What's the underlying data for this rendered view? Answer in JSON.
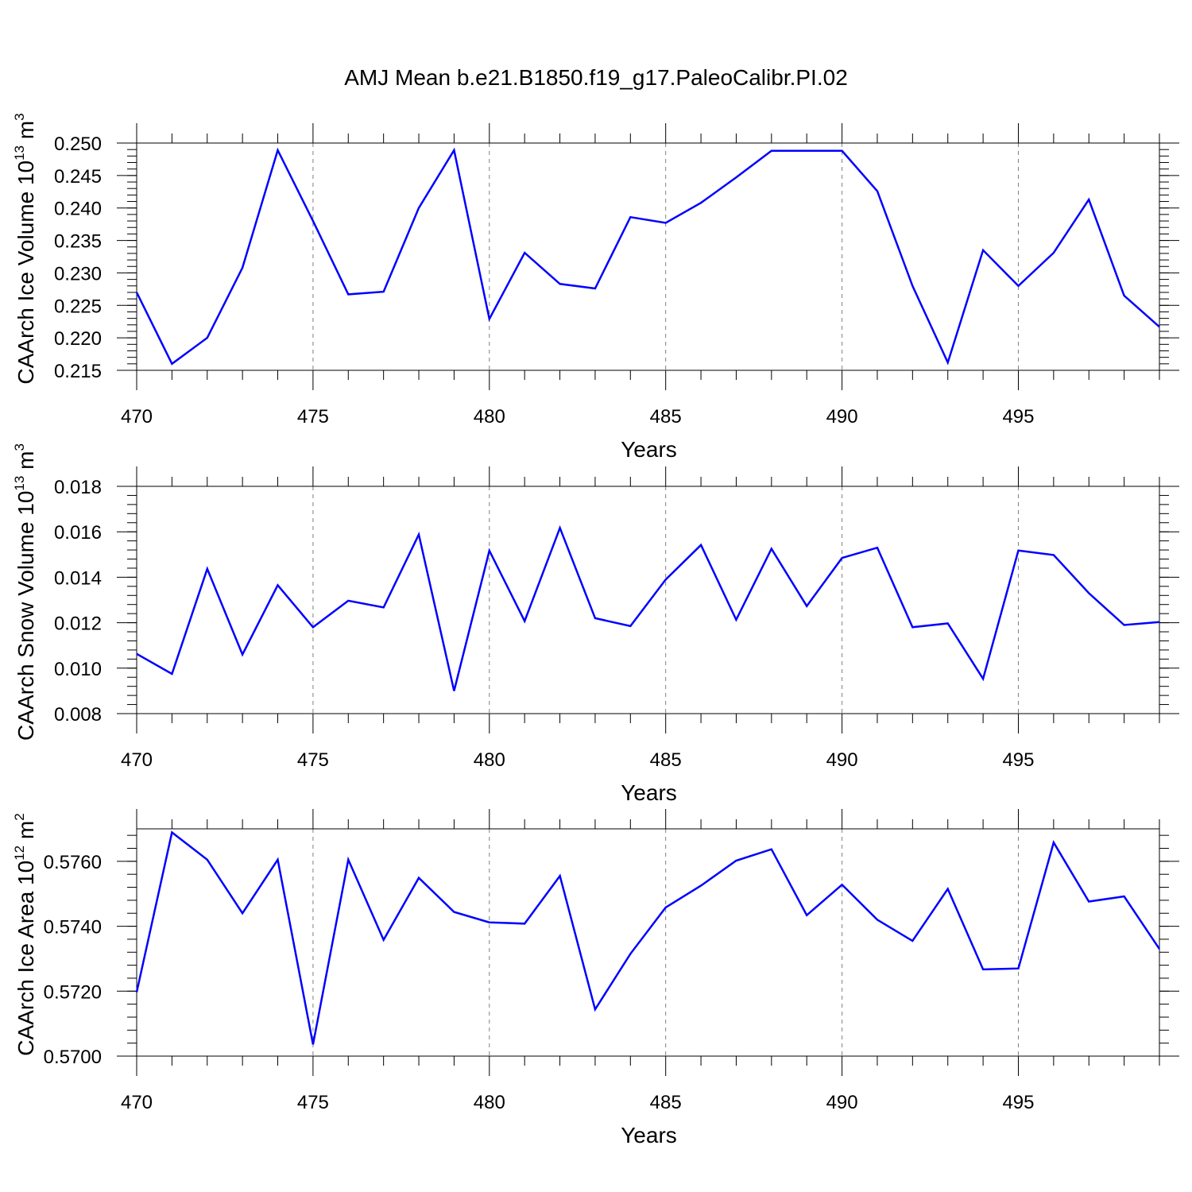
{
  "title": "AMJ Mean b.e21.B1850.f19_g17.PaleoCalibr.PI.02",
  "colors": {
    "line": "#0000ff",
    "axis": "#000000",
    "grid": "#808080"
  },
  "chart_data": [
    {
      "type": "line",
      "xlabel": "Years",
      "ylabel": {
        "text": "CAArch Ice Volume 10",
        "exp": "13",
        "unit": " m",
        "unit_exp": "3"
      },
      "xlim": [
        470,
        499
      ],
      "ylim": [
        0.215,
        0.25
      ],
      "xticks": [
        470,
        475,
        480,
        485,
        490,
        495
      ],
      "yticks": [
        "0.215",
        "0.220",
        "0.225",
        "0.230",
        "0.235",
        "0.240",
        "0.245",
        "0.250"
      ],
      "grid": "vertical dashed at major x ticks",
      "x": [
        470,
        471,
        472,
        473,
        474,
        475,
        476,
        477,
        478,
        479,
        480,
        481,
        482,
        483,
        484,
        485,
        486,
        487,
        488,
        489,
        490,
        491,
        492,
        493,
        494,
        495,
        496,
        497,
        498,
        499
      ],
      "series": [
        {
          "values": [
            0.227,
            0.216,
            0.22,
            0.2308,
            0.2489,
            0.238,
            0.2267,
            0.2271,
            0.24,
            0.2489,
            0.2229,
            0.2331,
            0.2283,
            0.2276,
            0.2386,
            0.2377,
            0.2408,
            0.2447,
            0.2488,
            0.2488,
            0.2488,
            0.2426,
            0.228,
            0.2162,
            0.2335,
            0.228,
            0.2331,
            0.2413,
            0.2265,
            0.2217
          ]
        }
      ]
    },
    {
      "type": "line",
      "xlabel": "Years",
      "ylabel": {
        "text": "CAArch Snow Volume 10",
        "exp": "13",
        "unit": " m",
        "unit_exp": "3"
      },
      "xlim": [
        470,
        499
      ],
      "ylim": [
        0.008,
        0.018
      ],
      "xticks": [
        470,
        475,
        480,
        485,
        490,
        495
      ],
      "yticks": [
        "0.008",
        "0.010",
        "0.012",
        "0.014",
        "0.016",
        "0.018"
      ],
      "grid": "vertical dashed at major x ticks",
      "x": [
        470,
        471,
        472,
        473,
        474,
        475,
        476,
        477,
        478,
        479,
        480,
        481,
        482,
        483,
        484,
        485,
        486,
        487,
        488,
        489,
        490,
        491,
        492,
        493,
        494,
        495,
        496,
        497,
        498,
        499
      ],
      "series": [
        {
          "values": [
            0.01063,
            0.00975,
            0.01437,
            0.0106,
            0.01365,
            0.0118,
            0.01297,
            0.01267,
            0.01588,
            0.009,
            0.01517,
            0.01207,
            0.01617,
            0.0122,
            0.01185,
            0.0139,
            0.01542,
            0.01213,
            0.01525,
            0.01273,
            0.01485,
            0.0153,
            0.0118,
            0.01197,
            0.00953,
            0.01518,
            0.01498,
            0.0133,
            0.0119,
            0.01203
          ]
        }
      ]
    },
    {
      "type": "line",
      "xlabel": "Years",
      "ylabel": {
        "text": "CAArch Ice Area 10",
        "exp": "12",
        "unit": " m",
        "unit_exp": "2"
      },
      "xlim": [
        470,
        499
      ],
      "ylim": [
        0.57,
        0.577
      ],
      "xticks": [
        470,
        475,
        480,
        485,
        490,
        495
      ],
      "yticks": [
        "0.5700",
        "0.5720",
        "0.5740",
        "0.5760"
      ],
      "grid": "vertical dashed at major x ticks",
      "x": [
        470,
        471,
        472,
        473,
        474,
        475,
        476,
        477,
        478,
        479,
        480,
        481,
        482,
        483,
        484,
        485,
        486,
        487,
        488,
        489,
        490,
        491,
        492,
        493,
        494,
        495,
        496,
        497,
        498,
        499
      ],
      "series": [
        {
          "values": [
            0.57197,
            0.57689,
            0.57605,
            0.5744,
            0.57605,
            0.57036,
            0.57605,
            0.57358,
            0.57549,
            0.57444,
            0.57412,
            0.57408,
            0.57555,
            0.57144,
            0.57315,
            0.57458,
            0.57525,
            0.57602,
            0.57637,
            0.57434,
            0.57528,
            0.5742,
            0.57355,
            0.57515,
            0.57267,
            0.5727,
            0.57658,
            0.57476,
            0.57492,
            0.5733
          ]
        }
      ]
    }
  ]
}
